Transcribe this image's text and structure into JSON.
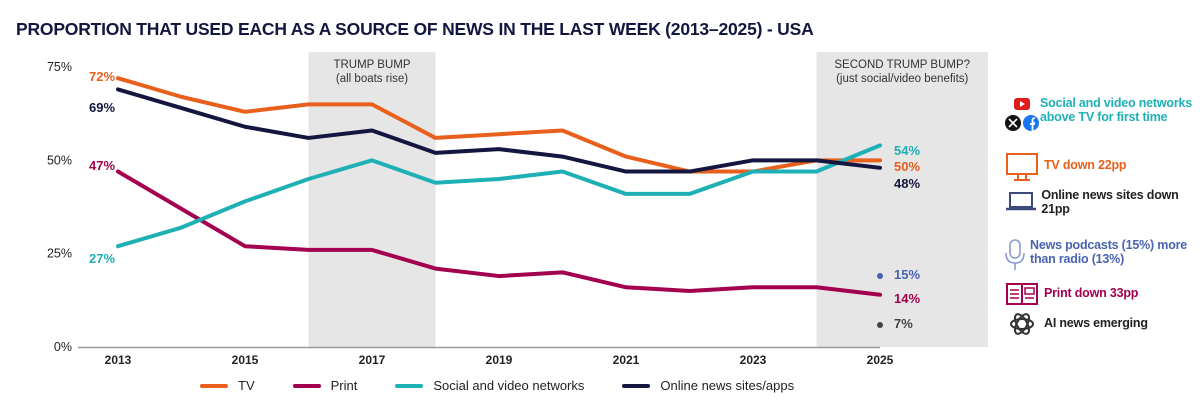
{
  "chart_data": {
    "type": "line",
    "title": "PROPORTION THAT USED EACH AS A SOURCE OF NEWS IN THE LAST WEEK (2013–2025) - USA",
    "x": [
      2013,
      2014,
      2015,
      2016,
      2017,
      2018,
      2019,
      2020,
      2021,
      2022,
      2023,
      2024,
      2025
    ],
    "xticks": [
      "2013",
      "2015",
      "2017",
      "2019",
      "2021",
      "2023",
      "2025"
    ],
    "yticks": [
      "0%",
      "25%",
      "50%",
      "75%"
    ],
    "ylim": [
      0,
      75
    ],
    "grid": false,
    "legend": "bottom",
    "series": [
      {
        "name": "TV",
        "color": "#e8601c",
        "values": [
          72,
          67,
          63,
          65,
          65,
          56,
          57,
          58,
          51,
          47,
          47,
          50,
          50
        ],
        "start_label": "72%",
        "end_label": "50%"
      },
      {
        "name": "Print",
        "color": "#a3004f",
        "values": [
          47,
          37,
          27,
          26,
          26,
          21,
          19,
          20,
          16,
          15,
          16,
          16,
          14
        ],
        "start_label": "47%",
        "end_label": "14%"
      },
      {
        "name": "Social and video networks",
        "color": "#1fb0b5",
        "values": [
          27,
          32,
          39,
          45,
          50,
          44,
          45,
          47,
          41,
          41,
          47,
          47,
          54
        ],
        "start_label": "27%",
        "end_label": "54%"
      },
      {
        "name": "Online news sites/apps",
        "color": "#14163f",
        "values": [
          69,
          64,
          59,
          56,
          58,
          52,
          53,
          51,
          47,
          47,
          50,
          50,
          48
        ],
        "start_label": "69%",
        "end_label": "48%"
      }
    ],
    "points": [
      {
        "x": 2025,
        "value": 15,
        "label": "15%",
        "color": "#4a63b0"
      },
      {
        "x": 2025,
        "value": 7,
        "label": "7%",
        "color": "#444444"
      }
    ],
    "bands": [
      {
        "from": 2016,
        "to": 2018,
        "title": "TRUMP BUMP",
        "subtitle": "(all boats rise)"
      },
      {
        "from": 2024,
        "to": 2026.7,
        "title": "SECOND TRUMP BUMP?",
        "subtitle": "(just social/video benefits)"
      }
    ]
  },
  "notes": [
    {
      "icon": "social-logos-icon",
      "text": "Social and video networks above TV for first time",
      "color": "#1fb0b5"
    },
    {
      "icon": "tv-icon",
      "text": "TV down 22pp",
      "color": "#e8601c"
    },
    {
      "icon": "laptop-icon",
      "text": "Online news sites down 21pp",
      "color": "#222222"
    },
    {
      "icon": "microphone-icon",
      "text": "News podcasts (15%) more than radio (13%)",
      "color": "#4a63b0"
    },
    {
      "icon": "newspaper-icon",
      "text": "Print down 33pp",
      "color": "#a3004f"
    },
    {
      "icon": "openai-icon",
      "text": "AI news emerging",
      "color": "#222222"
    }
  ]
}
